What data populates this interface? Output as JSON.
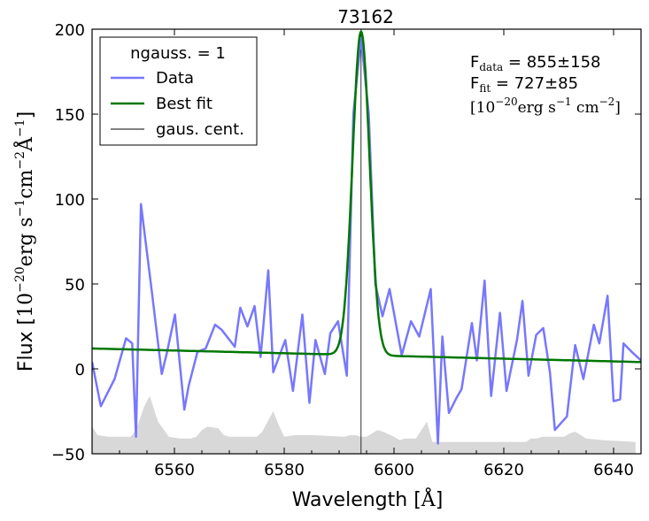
{
  "chart_data": {
    "type": "line",
    "title": "73162",
    "xlabel_main": "Wavelength [",
    "xlabel_unit": "Å",
    "xlabel_end": "]",
    "ylabel_main": "Flux [",
    "ylabel_pow": "10",
    "ylabel_exp": "−20",
    "ylabel_units": "erg s",
    "ylabel_exp2": "−1",
    "ylabel_units2": "cm",
    "ylabel_exp3": "−2",
    "ylabel_units3": "Å",
    "ylabel_exp4": "−1",
    "ylabel_end": "]",
    "xlim": [
      6545,
      6645
    ],
    "ylim": [
      -50,
      200
    ],
    "xticks": [
      6560,
      6580,
      6600,
      6620,
      6640
    ],
    "yticks": [
      -50,
      0,
      50,
      100,
      150,
      200
    ],
    "xtick_labels": [
      "6560",
      "6580",
      "6600",
      "6620",
      "6640"
    ],
    "ytick_labels": [
      "−50",
      "0",
      "50",
      "100",
      "150",
      "200"
    ],
    "legend": {
      "title": "ngauss. = 1",
      "placement": "top-left",
      "entries": [
        "Data",
        "Best fit",
        "gaus. cent."
      ]
    },
    "annotation": {
      "fdata_label": "F",
      "fdata_sub": "data",
      "fdata_value": " = 855±158",
      "ffit_label": "F",
      "ffit_sub": "fit",
      "ffit_value": " = 727±85",
      "units_open": "[",
      "units_pow": "10",
      "units_exp": "−20",
      "units_body": "erg s",
      "units_exp2": "−1",
      "units_body2": " cm",
      "units_exp3": "−2",
      "units_close": "]"
    },
    "colors": {
      "data": "#7777ff",
      "fit": "#007700",
      "center": "#000000",
      "error": "#d8d8d8"
    },
    "center_wavelength": 6594,
    "series": [
      {
        "name": "Data",
        "x": [
          6545,
          6546.6,
          6549.1,
          6551.2,
          6552.3,
          6553.0,
          6553.9,
          6555.9,
          6557.7,
          6558.6,
          6560.1,
          6561.8,
          6562.6,
          6564.2,
          6565.7,
          6567.4,
          6568.6,
          6571.0,
          6572.0,
          6573.3,
          6574.6,
          6575.7,
          6577.1,
          6578.0,
          6580.2,
          6581.6,
          6583.3,
          6584.6,
          6585.7,
          6587.4,
          6588.4,
          6589.8,
          6591.4,
          6592.6,
          6594.0,
          6595.4,
          6596.6,
          6597.9,
          6599.2,
          6601.4,
          6603.1,
          6604.6,
          6606.7,
          6608.0,
          6608.8,
          6610.0,
          6611.4,
          6612.3,
          6614.2,
          6615.1,
          6616.5,
          6617.7,
          6619.3,
          6620.5,
          6622.4,
          6623.4,
          6624.5,
          6625.9,
          6627.2,
          6628.4,
          6629.3,
          6631.5,
          6633.0,
          6634.5,
          6636.4,
          6637.4,
          6638.9,
          6640.0,
          6641.2,
          6641.8,
          6643.3,
          6645.0
        ],
        "y": [
          4,
          -22,
          -6,
          18,
          15,
          -40,
          97,
          45,
          -3,
          9,
          32,
          -24,
          -10,
          10,
          12,
          26,
          23,
          13,
          36,
          25,
          37,
          7,
          58,
          -2,
          17,
          -13,
          32,
          -20,
          17,
          -3,
          21,
          28,
          -4,
          150,
          195,
          150,
          50,
          31,
          47,
          8,
          28,
          19,
          47,
          -44,
          19,
          -26,
          -17,
          -12,
          27,
          5,
          52,
          -16,
          33,
          -13,
          17,
          40,
          -4,
          20,
          24,
          -2,
          -36,
          -28,
          14,
          -6,
          26,
          15,
          43,
          -19,
          -18,
          15,
          10,
          5
        ]
      },
      {
        "name": "Best fit",
        "model": {
          "amplitude": 190.5,
          "center": 6594.0,
          "sigma": 1.55,
          "baseline_at_6545": 12.0,
          "baseline_slope": -0.08
        }
      },
      {
        "name": "error",
        "x": [
          6545,
          6546,
          6548,
          6552,
          6553,
          6554.5,
          6555.5,
          6557,
          6559,
          6561,
          6562,
          6563,
          6564,
          6565,
          6566,
          6568,
          6569,
          6570,
          6575,
          6576,
          6577,
          6578,
          6579,
          6580,
          6582,
          6585,
          6591,
          6592,
          6593,
          6594,
          6595,
          6596,
          6597,
          6598,
          6600,
          6601,
          6602,
          6604,
          6605,
          6606,
          6607,
          6624,
          6625,
          6626,
          6627,
          6631,
          6632,
          6633,
          6634,
          6635,
          6638,
          6644
        ],
        "y": [
          -34,
          -39,
          -40,
          -40,
          -36,
          -22,
          -16,
          -31,
          -40,
          -41,
          -41,
          -41,
          -40,
          -36,
          -34,
          -35,
          -39,
          -40,
          -40,
          -37,
          -31,
          -25,
          -33,
          -40,
          -39,
          -39,
          -40,
          -39,
          -39,
          -40,
          -40,
          -38,
          -36,
          -37,
          -40,
          -42,
          -41,
          -41,
          -36,
          -31,
          -43,
          -43,
          -41,
          -41,
          -40,
          -40,
          -38,
          -37,
          -39,
          -41,
          -42,
          -43
        ]
      }
    ]
  }
}
